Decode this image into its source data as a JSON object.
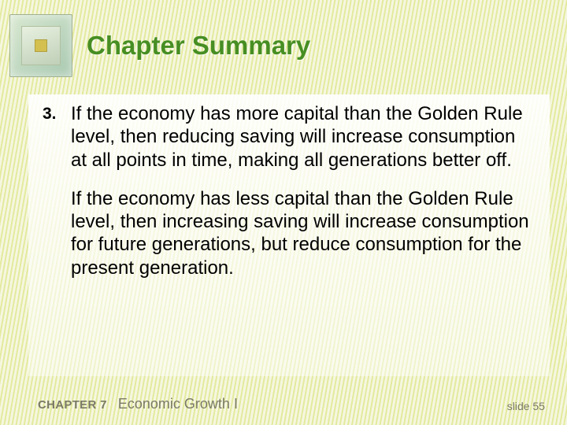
{
  "header": {
    "title": "Chapter Summary",
    "title_color": "#478e23",
    "title_fontsize": 33
  },
  "content": {
    "number": "3.",
    "para1": "If the economy has more capital than the Golden Rule level, then reducing saving will increase consumption at all points in time, making all generations better off.",
    "para2": "If the economy has less capital than the Golden Rule level, then increasing saving will increase consumption for future generations, but reduce consumption for the present generation."
  },
  "footer": {
    "chapter_label": "CHAPTER 7",
    "chapter_title": "Economic Growth I",
    "slide_label": "slide 55"
  },
  "style": {
    "body_fontsize": 24,
    "body_color": "#000000",
    "footer_color": "#7a7a66",
    "background_stripe_light": "#f5f7e0",
    "background_stripe_dark": "#e4ea9e"
  }
}
